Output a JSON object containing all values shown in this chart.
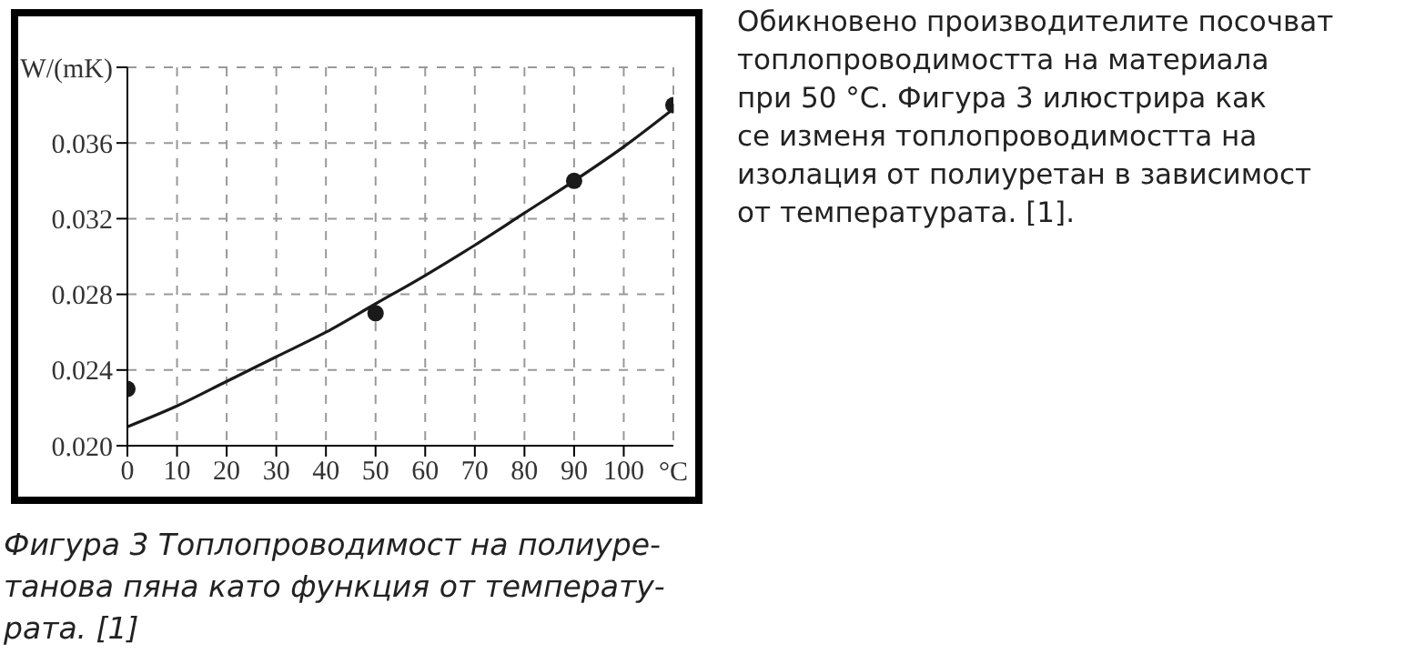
{
  "chart_data": {
    "type": "scatter",
    "xlim": [
      0,
      110
    ],
    "ylim": [
      0.02,
      0.04
    ],
    "xticks": [
      0,
      10,
      20,
      30,
      40,
      50,
      60,
      70,
      80,
      90,
      100
    ],
    "xlabel": "°C",
    "yticks": [
      {
        "value": 0.02,
        "label": "0.020"
      },
      0.024,
      0.028,
      0.032,
      0.036,
      {
        "value": 0.04,
        "label": "W/(mK)"
      }
    ],
    "grid": true,
    "line_style": "dashed",
    "series": [
      {
        "color": "#1a1a1a",
        "marker": "circle",
        "x": [
          0,
          50,
          90,
          110
        ],
        "values": [
          0.023,
          0.027,
          0.034,
          0.038
        ]
      },
      {
        "type": "line",
        "color": "#1a1a1a",
        "marker": "none",
        "line_style": "solid",
        "x": [
          0,
          10,
          20,
          30,
          40,
          50,
          60,
          70,
          80,
          90,
          100,
          110
        ],
        "values": [
          0.021,
          0.0221,
          0.0234,
          0.0247,
          0.026,
          0.0275,
          0.029,
          0.0306,
          0.0323,
          0.034,
          0.0358,
          0.0378
        ]
      }
    ],
    "annotations": [
      "Фигура 3 Топлопроводимост на полиуре-\nтанова пяна като функция от температу-\nрата. [1]",
      "Обикновено производителите посочват\nтоплопроводимостта на материала\nпри 50 °C. Фигура 3 илюстрира как\nсе изменя топлопроводимостта на\nизолация от полиуретан в зависимост\nот температурата. [1]."
    ]
  }
}
